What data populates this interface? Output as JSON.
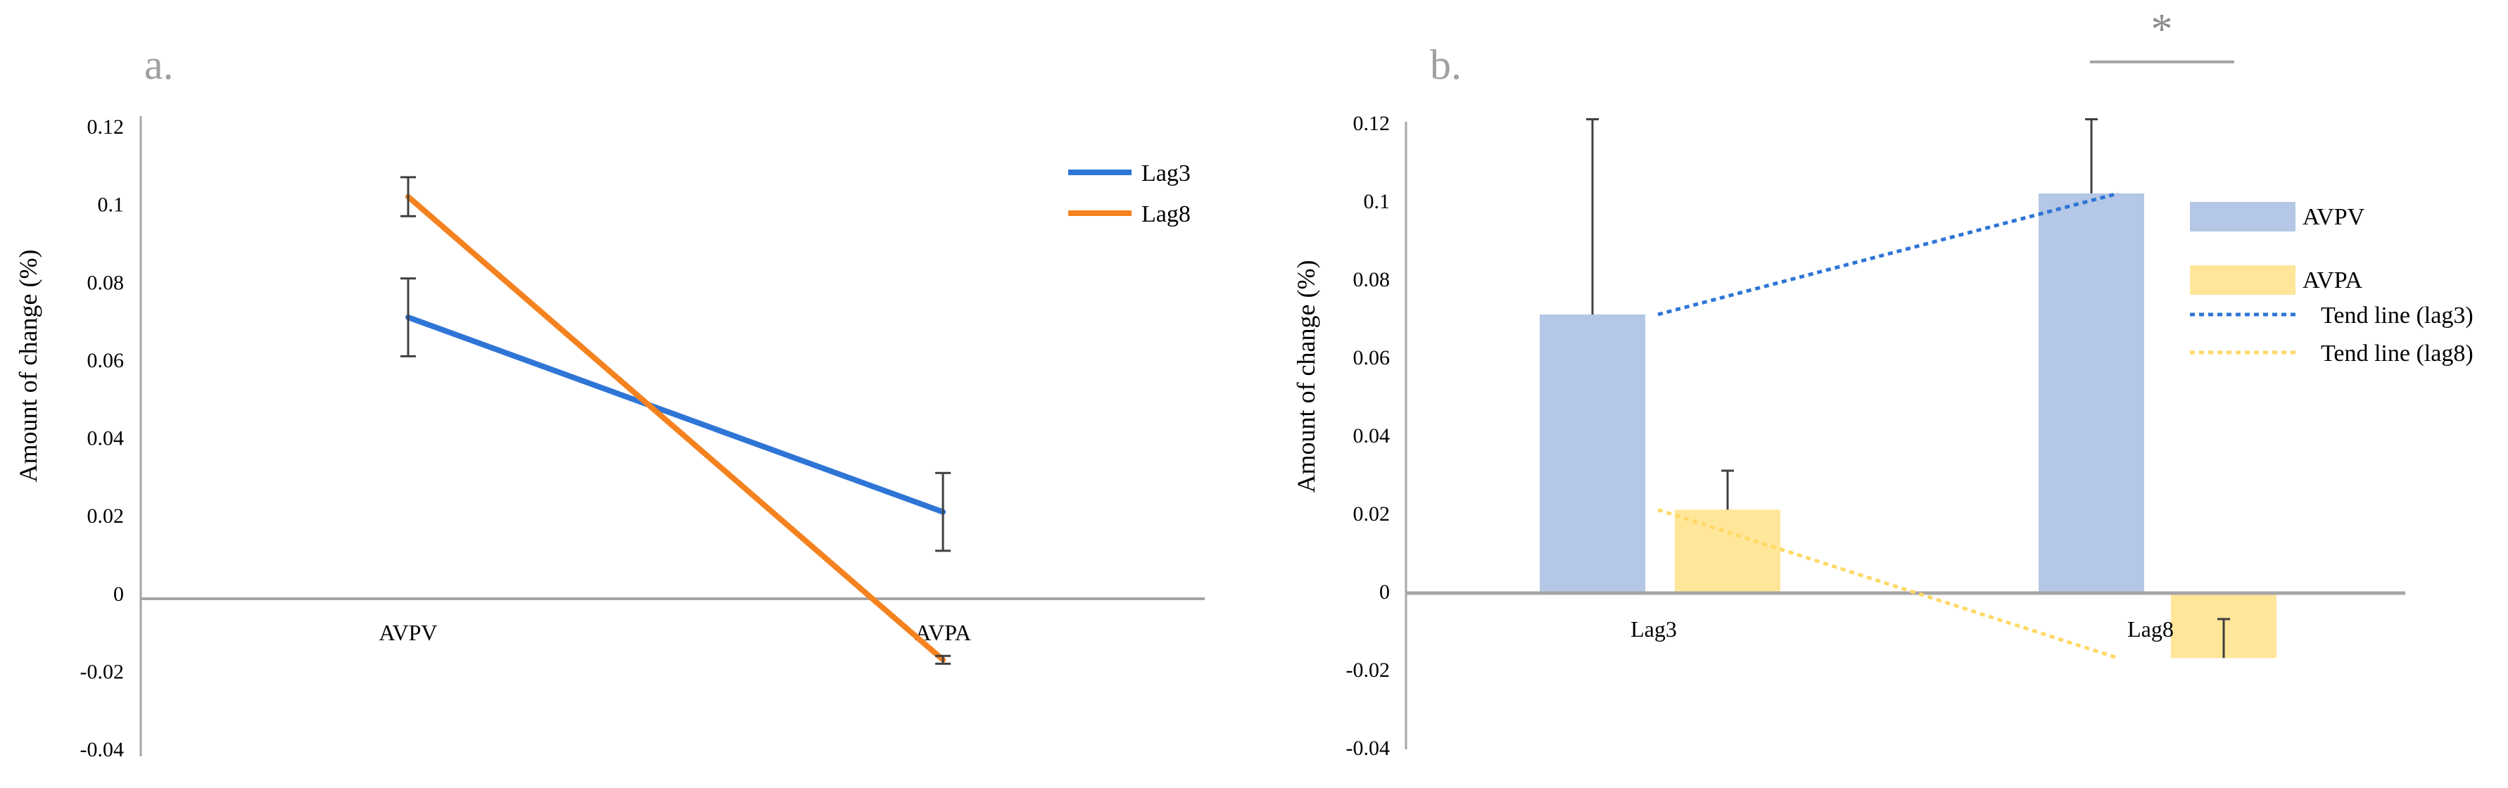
{
  "chart_data": [
    {
      "panel_label": "a.",
      "type": "line",
      "title": "",
      "xlabel": "",
      "ylabel": "Amount of change (%)",
      "categories": [
        "AVPV",
        "AVPA"
      ],
      "series": [
        {
          "name": "Lag3",
          "values": [
            0.071,
            0.021
          ],
          "errors": [
            0.01,
            0.01
          ],
          "color": "#2e75d6"
        },
        {
          "name": "Lag8",
          "values": [
            0.102,
            -0.017
          ],
          "errors": [
            0.005,
            0.001
          ],
          "color": "#f5821f"
        }
      ],
      "ylim": [
        -0.04,
        0.12
      ],
      "yticks": [
        "-0.04",
        "-0.02",
        "0",
        "0.02",
        "0.04",
        "0.06",
        "0.08",
        "0.1",
        "0.12"
      ],
      "legend": "top-right"
    },
    {
      "panel_label": "b.",
      "type": "bar",
      "title": "",
      "xlabel": "",
      "ylabel": "Amount of change (%)",
      "categories": [
        "Lag3",
        "Lag8"
      ],
      "series": [
        {
          "name": "AVPV",
          "values": [
            0.071,
            0.102
          ],
          "errors": [
            0.05,
            0.019
          ],
          "color": "#b4c7e7"
        },
        {
          "name": "AVPA",
          "values": [
            0.021,
            -0.017
          ],
          "errors": [
            0.01,
            0.01
          ],
          "color": "#ffe699"
        }
      ],
      "trend_lines": [
        {
          "name": "Tend line (lag3)",
          "values": [
            0.071,
            0.102
          ],
          "color": "#2e75d6"
        },
        {
          "name": "Tend line (lag8)",
          "values": [
            0.021,
            -0.017
          ],
          "color": "#ffd966"
        }
      ],
      "significance": "*",
      "ylim": [
        -0.04,
        0.12
      ],
      "yticks": [
        "-0.04",
        "-0.02",
        "0",
        "0.02",
        "0.04",
        "0.06",
        "0.08",
        "0.1",
        "0.12"
      ],
      "legend": "right"
    }
  ]
}
